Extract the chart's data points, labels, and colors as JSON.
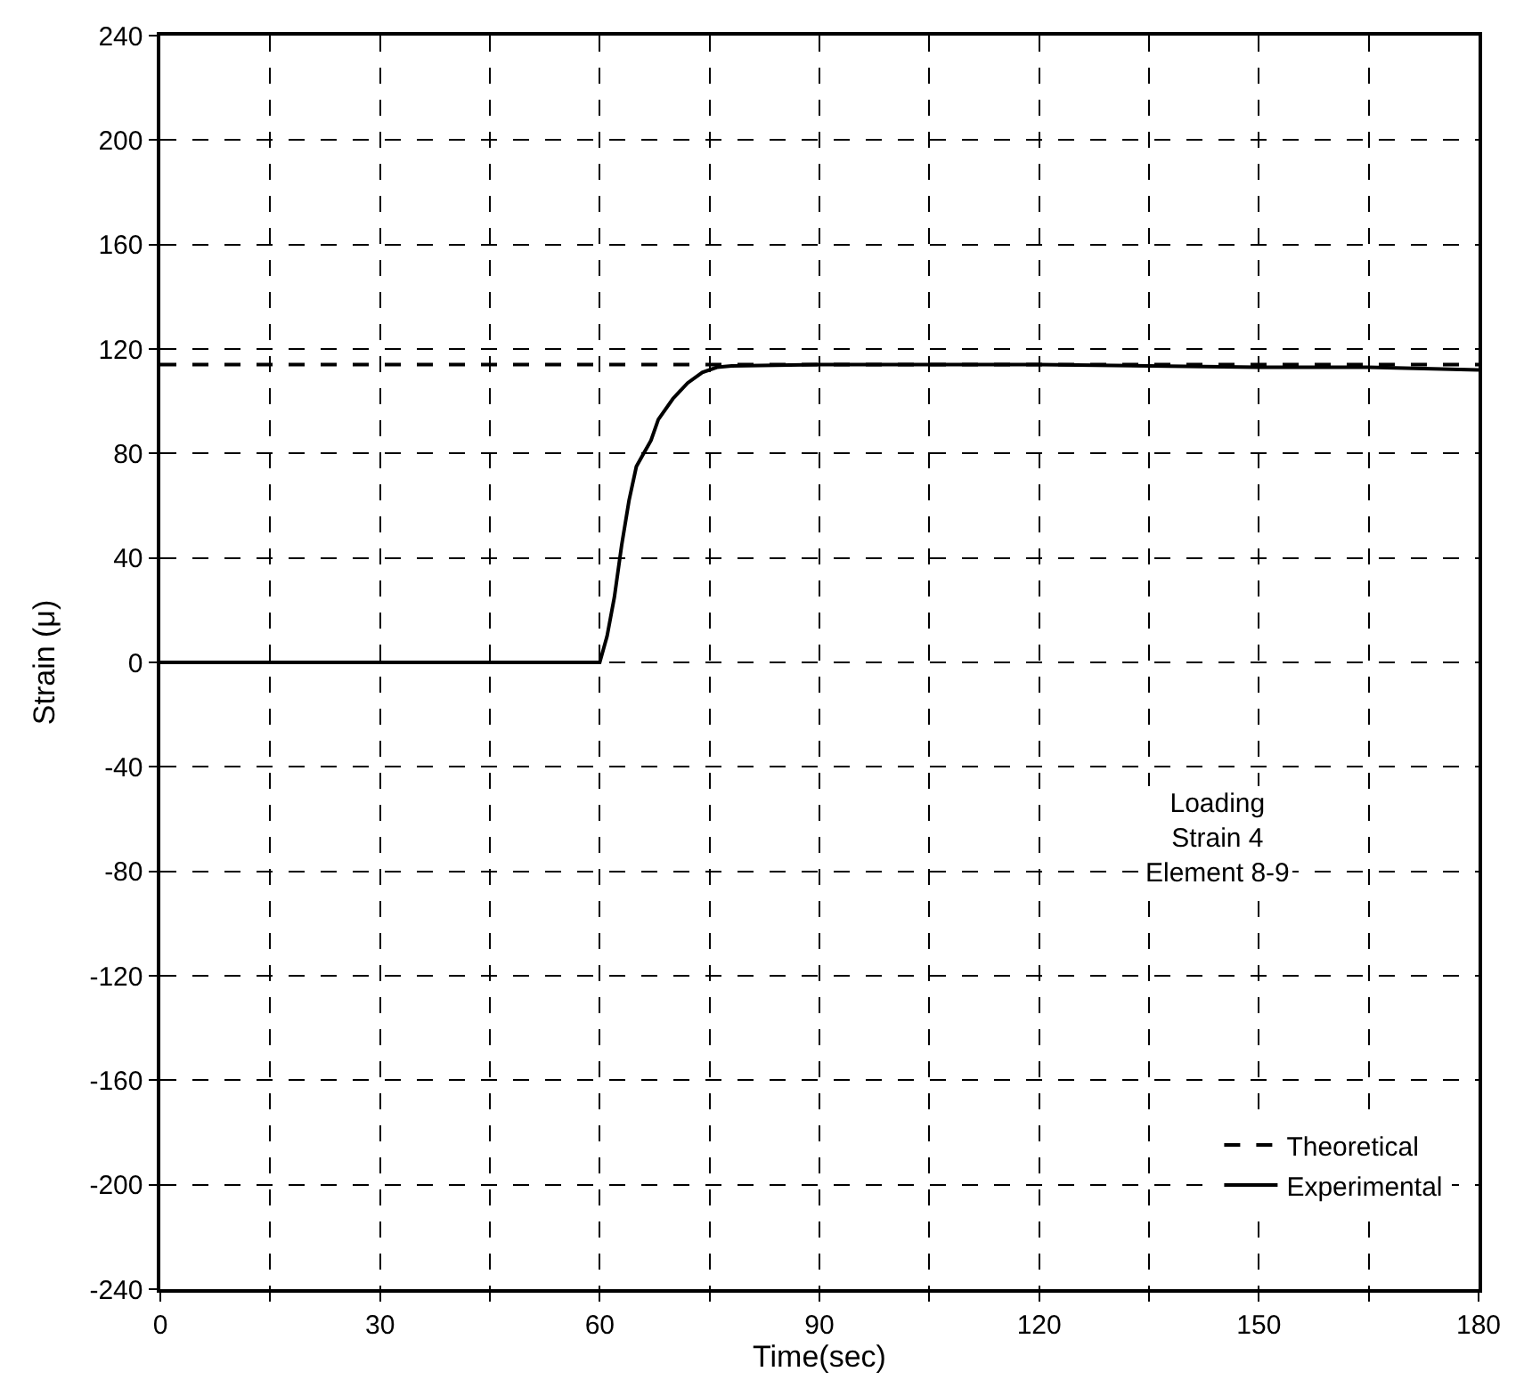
{
  "chart_data": {
    "type": "line",
    "xlabel": "Time(sec)",
    "ylabel": "Strain (μ)",
    "xlim": [
      0,
      180
    ],
    "ylim": [
      -240,
      240
    ],
    "xticks": [
      0,
      {
        "value": 15,
        "label": null
      },
      30,
      {
        "value": 45,
        "label": null
      },
      60,
      {
        "value": 75,
        "label": null
      },
      90,
      {
        "value": 105,
        "label": null
      },
      120,
      {
        "value": 135,
        "label": null
      },
      150,
      {
        "value": 165,
        "label": null
      },
      180
    ],
    "yticks": [
      -240,
      -200,
      -160,
      -120,
      -80,
      -40,
      0,
      40,
      80,
      120,
      160,
      200,
      240
    ],
    "grid": true,
    "legend": "bottom right",
    "series": [
      {
        "name": "Theoretical",
        "color": "#000000",
        "line_style": "dashed",
        "x": [
          0,
          180
        ],
        "values": [
          114,
          114
        ]
      },
      {
        "name": "Experimental",
        "color": "#000000",
        "line_style": "solid",
        "x": [
          0,
          30,
          50,
          60,
          61,
          62,
          63,
          64,
          65,
          66,
          67,
          68,
          70,
          72,
          74,
          76,
          78,
          90,
          120,
          150,
          165,
          180
        ],
        "values": [
          0,
          0,
          0,
          0,
          10,
          25,
          45,
          62,
          75,
          80,
          85,
          93,
          101,
          107,
          111,
          113,
          113.5,
          114,
          114,
          113,
          113,
          112
        ]
      }
    ],
    "annotations": [
      "Loading\nStrain 4\nElement 8-9"
    ]
  }
}
